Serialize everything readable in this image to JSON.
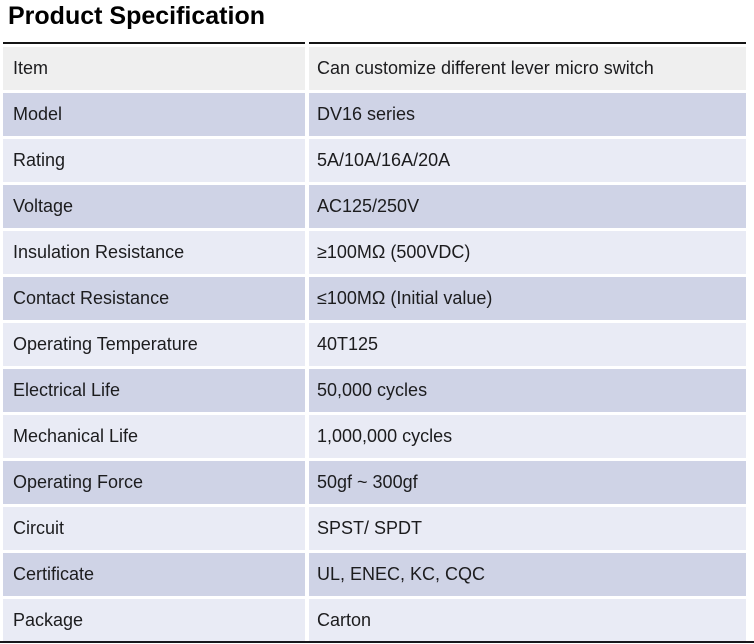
{
  "page": {
    "title": "Product Specification"
  },
  "colors": {
    "gray": "#efefef",
    "medium": "#cfd3e6",
    "light": "#e9ebf5",
    "border": "#141414"
  },
  "table": {
    "rows": [
      {
        "label": "Item",
        "value": "Can customize different lever micro switch",
        "tone": "gray"
      },
      {
        "label": "Model",
        "value": "DV16 series",
        "tone": "medium"
      },
      {
        "label": "Rating",
        "value": "5A/10A/16A/20A",
        "tone": "light"
      },
      {
        "label": "Voltage",
        "value": "AC125/250V",
        "tone": "medium"
      },
      {
        "label": "Insulation Resistance",
        "value": "≥100MΩ (500VDC)",
        "tone": "light"
      },
      {
        "label": "Contact Resistance",
        "value": "≤100MΩ (Initial value)",
        "tone": "medium"
      },
      {
        "label": "Operating Temperature",
        "value": "40T125",
        "tone": "light"
      },
      {
        "label": "Electrical Life",
        "value": "50,000 cycles",
        "tone": "medium"
      },
      {
        "label": "Mechanical Life",
        "value": "1,000,000 cycles",
        "tone": "light"
      },
      {
        "label": "Operating Force",
        "value": "50gf ~ 300gf",
        "tone": "medium"
      },
      {
        "label": "Circuit",
        "value": "SPST/ SPDT",
        "tone": "light"
      },
      {
        "label": "Certificate",
        "value": "UL, ENEC, KC, CQC",
        "tone": "medium"
      },
      {
        "label": "Package",
        "value": "Carton",
        "tone": "light"
      }
    ]
  }
}
